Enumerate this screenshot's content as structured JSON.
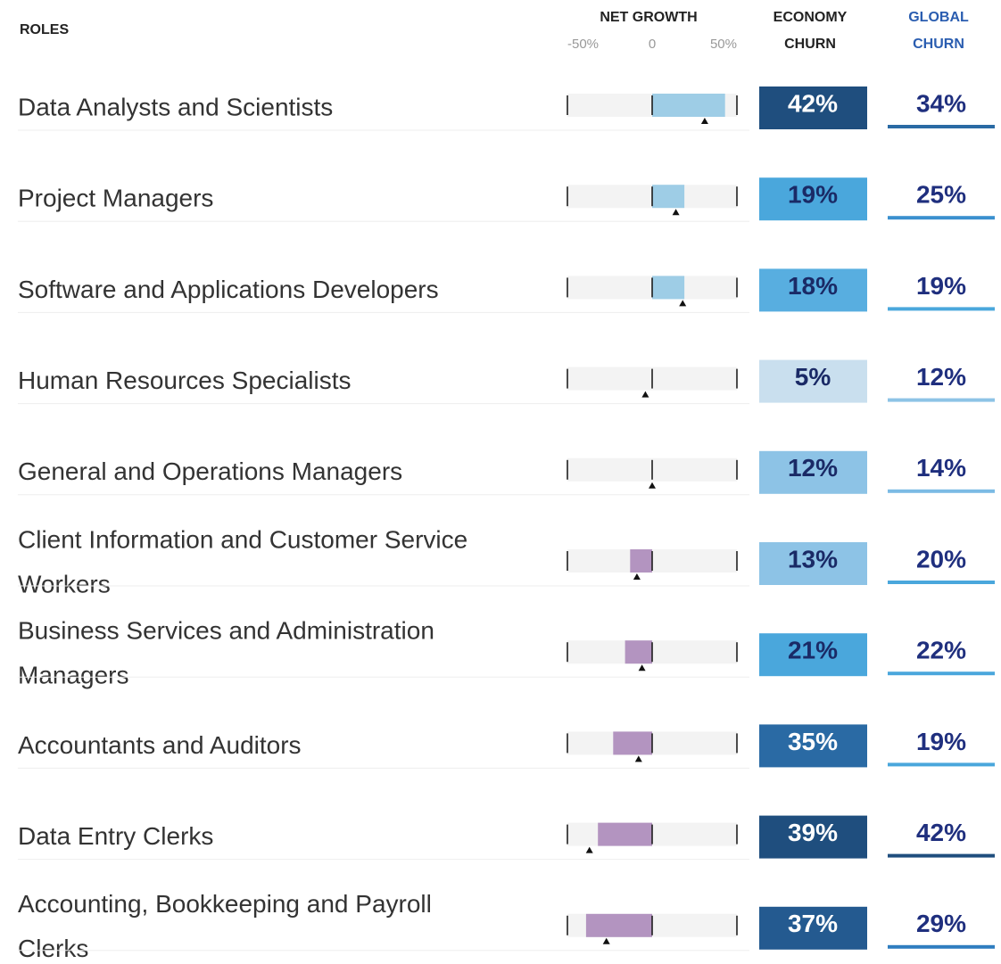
{
  "chart_data": {
    "type": "bullet-table",
    "headers": {
      "roles": "ROLES",
      "net_growth": "NET GROWTH",
      "economy": [
        "ECONOMY",
        "CHURN"
      ],
      "global": [
        "GLOBAL",
        "CHURN"
      ]
    },
    "xlim": [
      -50,
      50
    ],
    "xticks": [
      {
        "value": -50,
        "label": "-50%"
      },
      0,
      {
        "value": 50,
        "label": "50%"
      }
    ],
    "positive_color": "#9ecde6",
    "negative_color": "#b394c0",
    "rows": [
      {
        "role": [
          "Data Analysts and Scientists"
        ],
        "net_growth": 43,
        "marker": 31,
        "economy_churn": 42,
        "economy_label": "42%",
        "economy_color": "#1f4e7e",
        "economy_text_color": "#ffffff",
        "global_churn": 34,
        "global_label": "34%",
        "global_color": "#2a6aa4"
      },
      {
        "role": [
          "Project Managers"
        ],
        "net_growth": 19,
        "marker": 14,
        "economy_churn": 19,
        "economy_label": "19%",
        "economy_color": "#4aa7dc",
        "economy_text_color": "#1a2a66",
        "global_churn": 25,
        "global_label": "25%",
        "global_color": "#3a90cf"
      },
      {
        "role": [
          "Software and Applications Developers"
        ],
        "net_growth": 19,
        "marker": 18,
        "economy_churn": 18,
        "economy_label": "18%",
        "economy_color": "#58aee0",
        "economy_text_color": "#1a2a66",
        "global_churn": 19,
        "global_label": "19%",
        "global_color": "#4aa7dc"
      },
      {
        "role": [
          "Human Resources Specialists"
        ],
        "net_growth": 0,
        "marker": -4,
        "economy_churn": 5,
        "economy_label": "5%",
        "economy_color": "#c9dfee",
        "economy_text_color": "#1a2a66",
        "global_churn": 12,
        "global_label": "12%",
        "global_color": "#8dc3e6"
      },
      {
        "role": [
          "General and Operations Managers"
        ],
        "net_growth": 0,
        "marker": 0,
        "economy_churn": 12,
        "economy_label": "12%",
        "economy_color": "#8dc3e6",
        "economy_text_color": "#1a2a66",
        "global_churn": 14,
        "global_label": "14%",
        "global_color": "#7bbbe4"
      },
      {
        "role": [
          "Client Information and Customer Service",
          "Workers"
        ],
        "net_growth": -13,
        "marker": -9,
        "economy_churn": 13,
        "economy_label": "13%",
        "economy_color": "#8dc3e6",
        "economy_text_color": "#1a2a66",
        "global_churn": 20,
        "global_label": "20%",
        "global_color": "#4aa7dc"
      },
      {
        "role": [
          "Business Services and Administration",
          "Managers"
        ],
        "net_growth": -16,
        "marker": -6,
        "economy_churn": 21,
        "economy_label": "21%",
        "economy_color": "#4aa7dc",
        "economy_text_color": "#1a2a66",
        "global_churn": 22,
        "global_label": "22%",
        "global_color": "#4aa7dc"
      },
      {
        "role": [
          "Accountants and Auditors"
        ],
        "net_growth": -23,
        "marker": -8,
        "economy_churn": 35,
        "economy_label": "35%",
        "economy_color": "#2a6aa4",
        "economy_text_color": "#ffffff",
        "global_churn": 19,
        "global_label": "19%",
        "global_color": "#4aa7dc"
      },
      {
        "role": [
          "Data Entry Clerks"
        ],
        "net_growth": -32,
        "marker": -37,
        "economy_churn": 39,
        "economy_label": "39%",
        "economy_color": "#1f4e7e",
        "economy_text_color": "#ffffff",
        "global_churn": 42,
        "global_label": "42%",
        "global_color": "#1f4e7e"
      },
      {
        "role": [
          "Accounting, Bookkeeping and Payroll",
          "Clerks"
        ],
        "net_growth": -39,
        "marker": -27,
        "economy_churn": 37,
        "economy_label": "37%",
        "economy_color": "#245a90",
        "economy_text_color": "#ffffff",
        "global_churn": 29,
        "global_label": "29%",
        "global_color": "#2f7dc0"
      }
    ]
  }
}
